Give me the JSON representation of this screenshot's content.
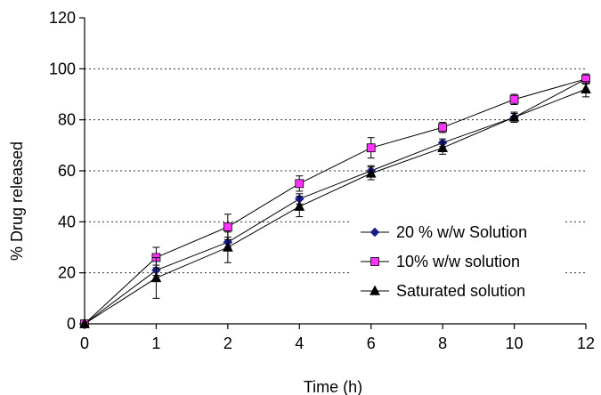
{
  "chart_data": {
    "type": "line",
    "title": "",
    "xlabel": "Time (h)",
    "ylabel": "% Drug released",
    "x": [
      0,
      1,
      2,
      4,
      6,
      8,
      10,
      12
    ],
    "x_tick_labels": [
      "0",
      "1",
      "2",
      "4",
      "6",
      "8",
      "10",
      "12"
    ],
    "ylim": [
      0,
      120
    ],
    "y_ticks": [
      0,
      20,
      40,
      60,
      80,
      100,
      120
    ],
    "grid": "horizontal dotted",
    "legend_position": "bottom-right",
    "series": [
      {
        "name": "20 % w/w Solution",
        "marker": "diamond",
        "color": "#1c1c8c",
        "values": [
          0,
          21,
          32,
          49,
          60,
          71,
          81,
          96
        ],
        "errors": [
          0,
          2,
          2,
          2,
          2,
          1.5,
          1.5,
          1.5
        ]
      },
      {
        "name": "10% w/w solution",
        "marker": "square",
        "color": "#ff33ff",
        "values": [
          0,
          26,
          38,
          55,
          69,
          77,
          88,
          96
        ],
        "errors": [
          0,
          4,
          5,
          3,
          4,
          2,
          2,
          2
        ]
      },
      {
        "name": "Saturated solution",
        "marker": "triangle",
        "color": "#000000",
        "values": [
          0,
          18,
          30,
          46,
          59,
          69,
          81,
          92
        ],
        "errors": [
          0,
          8,
          6,
          4,
          2.5,
          2.5,
          2,
          3
        ]
      }
    ]
  }
}
